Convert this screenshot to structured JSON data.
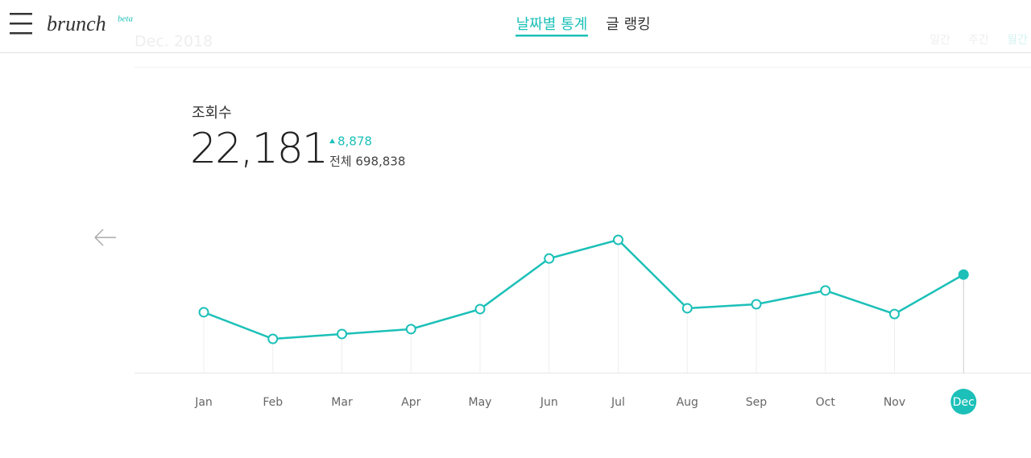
{
  "header": {
    "logo": "brunch",
    "logo_badge": "beta",
    "tabs": [
      "날짜별 통계",
      "글 랭킹"
    ]
  },
  "period": {
    "label": "Dec. 2018",
    "options": [
      "일간",
      "주간",
      "월간"
    ]
  },
  "summary": {
    "title": "조회수",
    "value": "22,181",
    "change": "8,878",
    "total": "전체 698,838"
  },
  "chart_data": {
    "type": "line",
    "categories": [
      "Jan",
      "Feb",
      "Mar",
      "Apr",
      "May",
      "Jun",
      "Jul",
      "Aug",
      "Sep",
      "Oct",
      "Nov",
      "Dec"
    ],
    "values": [
      13700,
      7700,
      8800,
      9900,
      14400,
      25800,
      30000,
      14600,
      15500,
      18600,
      13303,
      22181
    ],
    "color": "#1cc0b8"
  }
}
